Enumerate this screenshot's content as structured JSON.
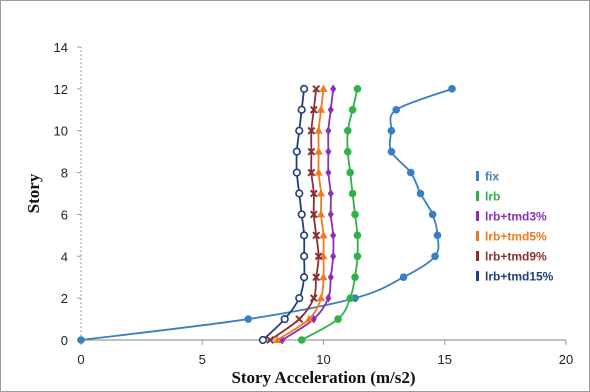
{
  "chart_data": {
    "type": "line",
    "xlabel": "Story Acceleration (m/s2)",
    "ylabel": "Story",
    "xlim": [
      0,
      20
    ],
    "ylim": [
      0,
      14
    ],
    "xticks": [
      0,
      5,
      10,
      15,
      20
    ],
    "yticks": [
      0,
      2,
      4,
      6,
      8,
      10,
      12,
      14
    ],
    "grid": false,
    "legend_position": "right",
    "y": [
      0,
      1,
      2,
      3,
      4,
      5,
      6,
      7,
      8,
      9,
      10,
      11,
      12
    ],
    "series": [
      {
        "name": "fix",
        "color": "#3a7fc1",
        "marker": "dot",
        "values": [
          0,
          6.9,
          11.3,
          13.3,
          14.6,
          14.7,
          14.5,
          14.0,
          13.6,
          12.8,
          12.8,
          13.0,
          15.3
        ]
      },
      {
        "name": "lrb",
        "color": "#2fb24a",
        "marker": "dot",
        "values": [
          9.1,
          10.6,
          11.1,
          11.3,
          11.4,
          11.4,
          11.3,
          11.2,
          11.1,
          11.0,
          11.0,
          11.2,
          11.4
        ]
      },
      {
        "name": "lrb+tmd3%",
        "color": "#8b2fb5",
        "marker": "diamond",
        "values": [
          8.3,
          9.6,
          10.2,
          10.3,
          10.4,
          10.4,
          10.3,
          10.3,
          10.2,
          10.2,
          10.2,
          10.3,
          10.4
        ]
      },
      {
        "name": "lrb+tmd5%",
        "color": "#f07a1d",
        "marker": "triangle",
        "values": [
          8.1,
          9.4,
          9.9,
          10.0,
          10.0,
          10.0,
          9.9,
          9.9,
          9.8,
          9.8,
          9.8,
          9.9,
          10.0
        ]
      },
      {
        "name": "lrb+tmd9%",
        "color": "#8a3030",
        "marker": "cross",
        "values": [
          7.8,
          9.0,
          9.6,
          9.7,
          9.8,
          9.7,
          9.6,
          9.6,
          9.5,
          9.5,
          9.5,
          9.6,
          9.7
        ]
      },
      {
        "name": "lrb+tmd15%",
        "color": "#1f3f7a",
        "marker": "ring",
        "values": [
          7.5,
          8.4,
          9.0,
          9.2,
          9.2,
          9.2,
          9.1,
          9.0,
          8.9,
          8.9,
          9.0,
          9.1,
          9.2
        ]
      }
    ]
  }
}
